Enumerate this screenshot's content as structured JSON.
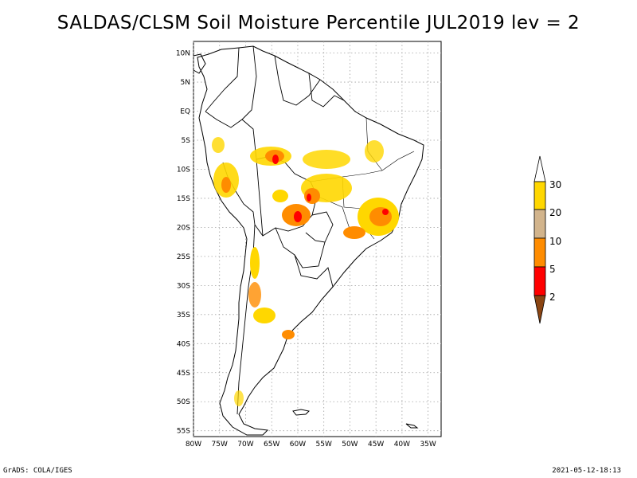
{
  "title": "SALDAS/CLSM Soil Moisture Percentile JUL2019 lev = 2",
  "footer": {
    "left": "GrADS: COLA/IGES",
    "right": "2021-05-12-18:13"
  },
  "map": {
    "lat_ticks": [
      "10N",
      "5N",
      "EQ",
      "5S",
      "10S",
      "15S",
      "20S",
      "25S",
      "30S",
      "35S",
      "40S",
      "45S",
      "50S",
      "55S"
    ],
    "lon_ticks": [
      "80W",
      "75W",
      "70W",
      "65W",
      "60W",
      "55W",
      "50W",
      "45W",
      "40W",
      "35W"
    ],
    "lon_range": [
      -80,
      -32.5
    ],
    "lat_range": [
      -56,
      12
    ]
  },
  "colorbar": {
    "levels": [
      "2",
      "5",
      "10",
      "20",
      "30"
    ],
    "colors": {
      "below_2": "#8b4513",
      "2_5": "#ff0000",
      "5_10": "#ff8c00",
      "10_20": "#d2b48c",
      "20_30": "#ffd700",
      "above_30": "#ffffff"
    }
  }
}
